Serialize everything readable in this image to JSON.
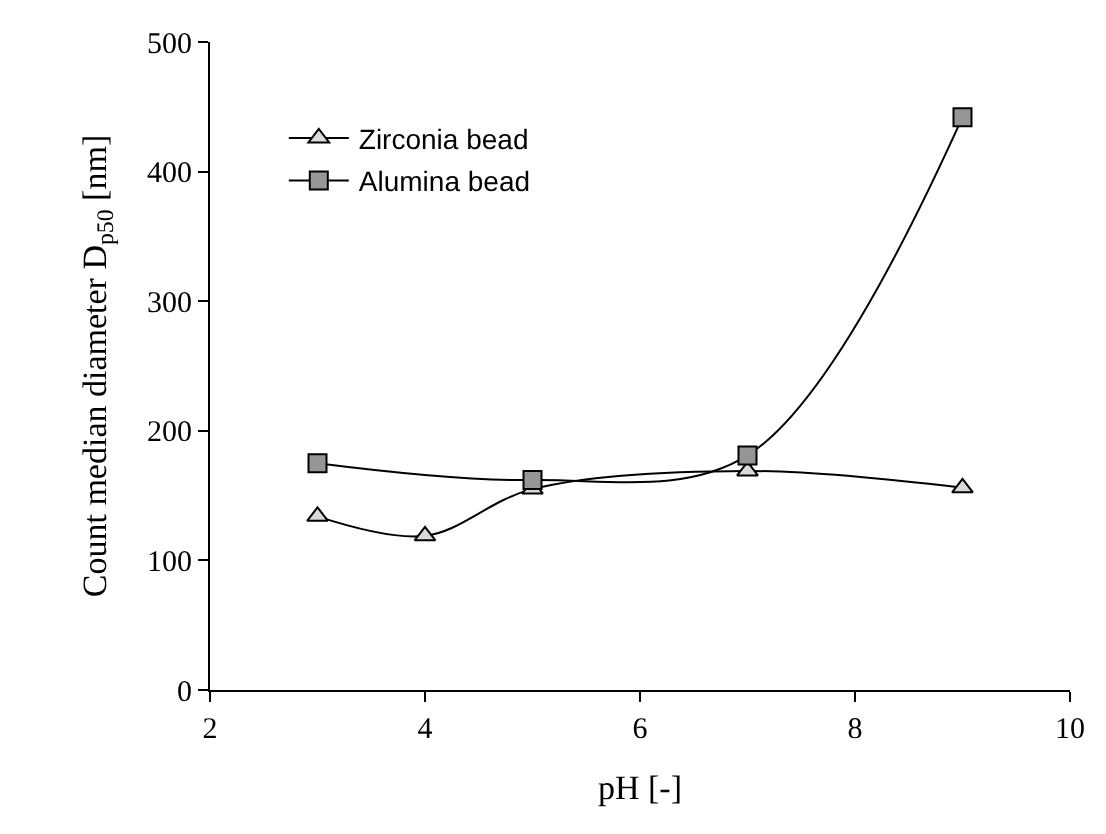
{
  "chart_data": {
    "type": "line",
    "xlabel": "pH [-]",
    "ylabel": "Count median diameter D$_{p50}$ [nm]",
    "xlim": [
      2,
      10
    ],
    "xticks": [
      2,
      4,
      6,
      8,
      10
    ],
    "ylim": [
      0,
      500
    ],
    "yticks": [
      0,
      100,
      200,
      300,
      400,
      500
    ],
    "legend": "top left",
    "line_style": "solid",
    "series": [
      {
        "name": "Zirconia bead",
        "color": "#000000",
        "marker": "triangle",
        "x": [
          3,
          4,
          5,
          7,
          9
        ],
        "values": [
          134,
          119,
          155,
          169,
          156
        ]
      },
      {
        "name": "Alumina bead",
        "color": "#000000",
        "marker": "square",
        "x": [
          3,
          5,
          7,
          9
        ],
        "values": [
          175,
          162,
          181,
          442
        ]
      }
    ]
  }
}
